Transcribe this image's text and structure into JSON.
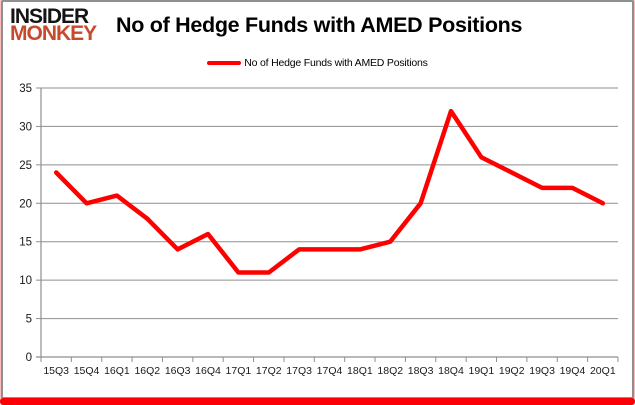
{
  "brand": {
    "line1": "INSIDER",
    "line2": "MONKEY",
    "line1_color": "#141414",
    "line2_color": "#c84a2c"
  },
  "header": {
    "title": "No of Hedge Funds with AMED Positions"
  },
  "legend": {
    "label": "No of Hedge Funds with AMED Positions",
    "marker_color": "#ff0000"
  },
  "frame": {
    "border_color": "#8f8f8f",
    "glow_color": "#f89696",
    "bottom_bar_color": "#fb0007"
  },
  "chart_data": {
    "type": "line",
    "title": "No of Hedge Funds with AMED Positions",
    "categories": [
      "15Q3",
      "15Q4",
      "16Q1",
      "16Q2",
      "16Q3",
      "16Q4",
      "17Q1",
      "17Q2",
      "17Q3",
      "17Q4",
      "18Q1",
      "18Q2",
      "18Q3",
      "18Q4",
      "19Q1",
      "19Q2",
      "19Q3",
      "19Q4",
      "20Q1"
    ],
    "series": [
      {
        "name": "No of Hedge Funds with AMED Positions",
        "color": "#ff0000",
        "values": [
          24,
          20,
          21,
          18,
          14,
          16,
          11,
          11,
          14,
          14,
          14,
          15,
          20,
          32,
          26,
          24,
          22,
          22,
          20
        ]
      }
    ],
    "xlabel": "",
    "ylabel": "",
    "ylim": [
      0,
      35
    ],
    "ytick_step": 5,
    "grid": true,
    "legend_position": "top",
    "gridline_color": "#8f8f8f",
    "axis_color": "#8f8f8f",
    "tick_label_color": "#1a1a1a"
  }
}
